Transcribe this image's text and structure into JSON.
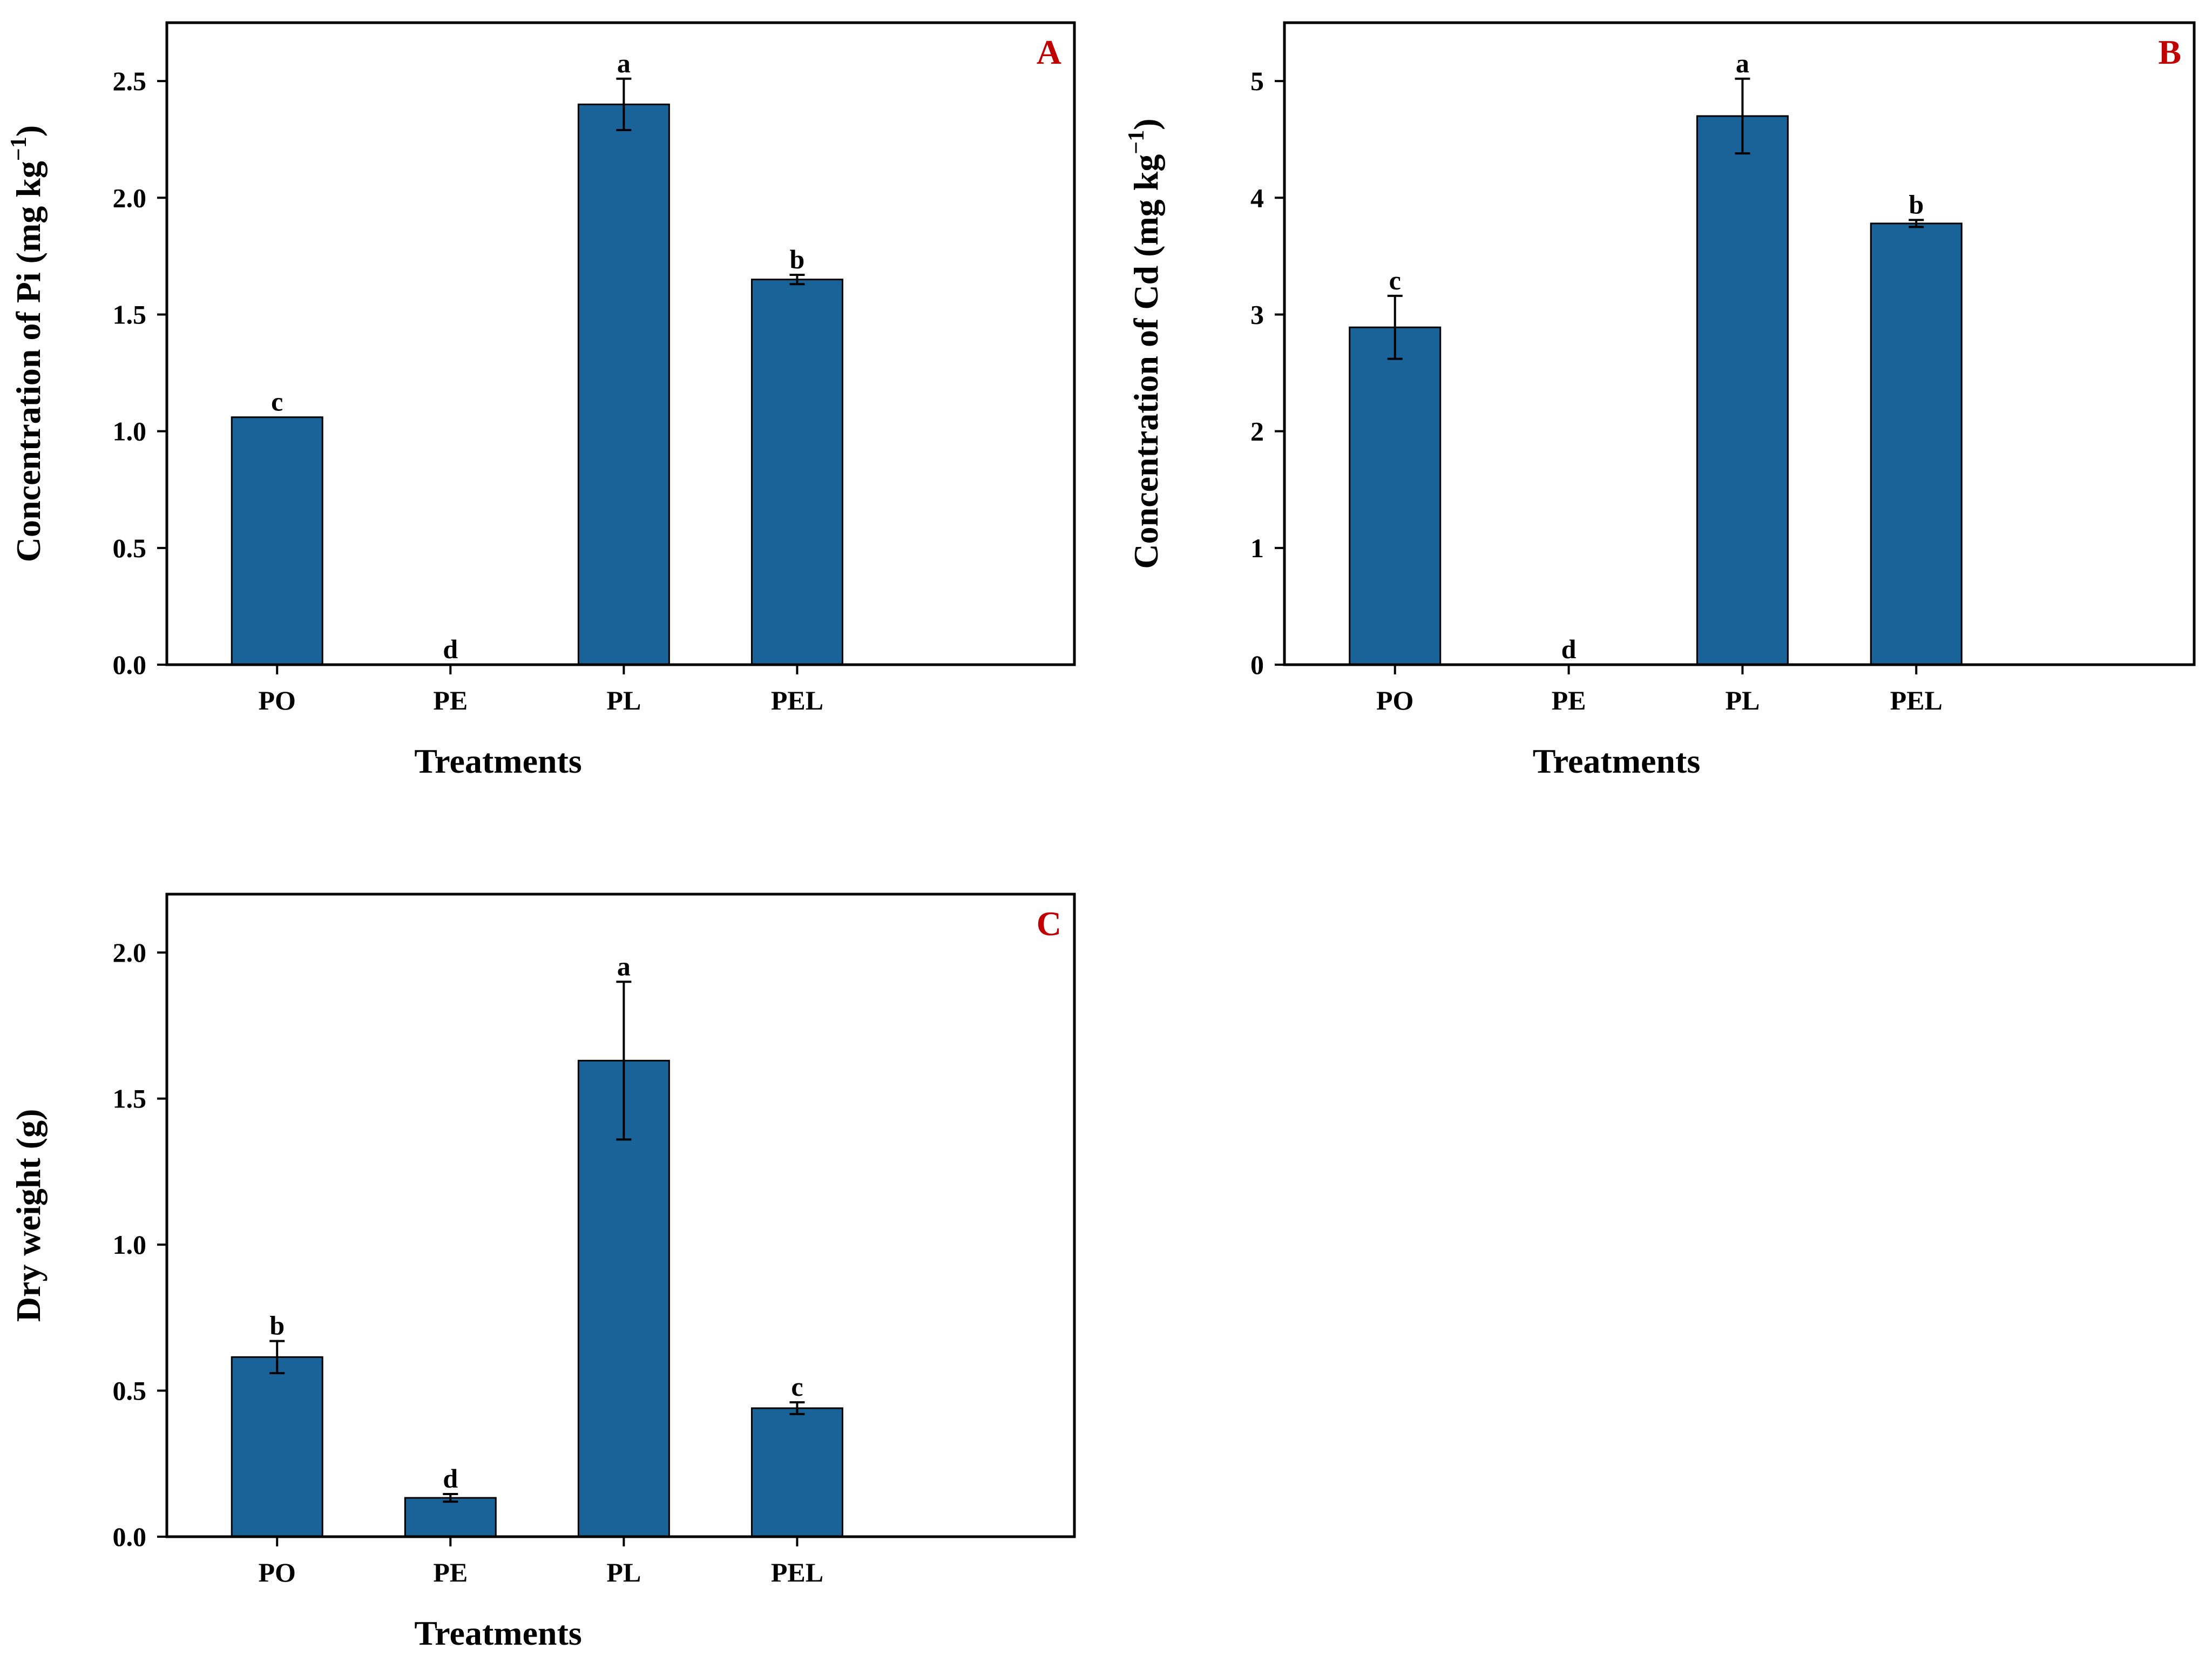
{
  "figure": {
    "bar_color": "#1a6398",
    "panel_label_color": "#c00000",
    "frame_color": "#000000"
  },
  "chart_data": [
    {
      "panel": "A",
      "type": "bar",
      "categories": [
        "PO",
        "PE",
        "PL",
        "PEL"
      ],
      "values": [
        1.06,
        0.0,
        2.4,
        1.65
      ],
      "errors": [
        0.0,
        0.0,
        0.11,
        0.02
      ],
      "significance": [
        "c",
        "d",
        "a",
        "b"
      ],
      "xlabel": "Treatments",
      "ylabel_main": "Concentration of Pi (mg kg",
      "ylabel_sup": "−1",
      "ylabel_tail": ")",
      "ylim": [
        0,
        2.75
      ],
      "yticks": [
        "0.0",
        "0.5",
        "1.0",
        "1.5",
        "2.0",
        "2.5"
      ],
      "ytick_values": [
        0,
        0.5,
        1.0,
        1.5,
        2.0,
        2.5
      ],
      "grid": false
    },
    {
      "panel": "B",
      "type": "bar",
      "categories": [
        "PO",
        "PE",
        "PL",
        "PEL"
      ],
      "values": [
        2.89,
        0.0,
        4.7,
        3.78
      ],
      "errors": [
        0.27,
        0.0,
        0.32,
        0.03
      ],
      "significance": [
        "c",
        "d",
        "a",
        "b"
      ],
      "xlabel": "Treatments",
      "ylabel_main": "Concentration of Cd (mg kg",
      "ylabel_sup": "−1",
      "ylabel_tail": ")",
      "ylim": [
        0,
        5.5
      ],
      "yticks": [
        "0",
        "1",
        "2",
        "3",
        "4",
        "5"
      ],
      "ytick_values": [
        0,
        1,
        2,
        3,
        4,
        5
      ],
      "grid": false
    },
    {
      "panel": "C",
      "type": "bar",
      "categories": [
        "PO",
        "PE",
        "PL",
        "PEL"
      ],
      "values": [
        0.615,
        0.133,
        1.63,
        0.44
      ],
      "errors": [
        0.055,
        0.013,
        0.27,
        0.02
      ],
      "significance": [
        "b",
        "d",
        "a",
        "c"
      ],
      "xlabel": "Treatments",
      "ylabel_main": "Dry weight (g)",
      "ylabel_sup": "",
      "ylabel_tail": "",
      "ylim": [
        0,
        2.2
      ],
      "yticks": [
        "0.0",
        "0.5",
        "1.0",
        "1.5",
        "2.0"
      ],
      "ytick_values": [
        0,
        0.5,
        1.0,
        1.5,
        2.0
      ],
      "grid": false
    }
  ]
}
